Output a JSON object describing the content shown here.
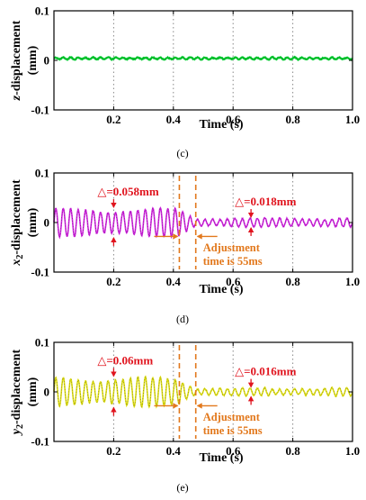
{
  "chart_data": [
    {
      "type": "line",
      "caption": "(c)",
      "ylabel_italic": "z",
      "ylabel_rest": "-displacement",
      "ylabel_unit": "(mm)",
      "xlabel": "Time (s)",
      "xlim": [
        0,
        1.0
      ],
      "ylim": [
        -0.1,
        0.1
      ],
      "x_ticks": [
        "0.2",
        "0.4",
        "0.6",
        "0.8",
        "1.0"
      ],
      "y_ticks": [
        "0.1",
        "0",
        "-0.1"
      ],
      "grid": "vertical dotted",
      "series": [
        {
          "color": "#00d030",
          "signal": {
            "offset": 0.004,
            "amplitude_before": 0.002,
            "amplitude_after": 0.002,
            "frequency_hz": 40,
            "switch_time": 0.42,
            "noise": 0.002
          }
        }
      ],
      "annotations": []
    },
    {
      "type": "line",
      "caption": "(d)",
      "ylabel_italic": "x",
      "ylabel_sub": "2",
      "ylabel_rest": "-displacement",
      "ylabel_unit": "(mm)",
      "xlabel": "Time (s)",
      "xlim": [
        0,
        1.0
      ],
      "ylim": [
        -0.1,
        0.1
      ],
      "x_ticks": [
        "0.2",
        "0.4",
        "0.6",
        "0.8",
        "1.0"
      ],
      "y_ticks": [
        "0.1",
        "0",
        "-0.1"
      ],
      "grid": "vertical dotted",
      "series": [
        {
          "color": "#d020e0",
          "signal": {
            "offset": 0.0,
            "amplitude_before": 0.029,
            "amplitude_after": 0.009,
            "frequency_hz": 40,
            "switch_time": 0.42,
            "noise": 0.003
          }
        }
      ],
      "annotations": [
        {
          "text": "△=0.058mm",
          "color": "#e0141e",
          "x": 0.2,
          "y_top": 0.029,
          "y_bottom": -0.029
        },
        {
          "text": "△=0.018mm",
          "color": "#e0141e",
          "x": 0.66,
          "y_top": 0.009,
          "y_bottom": -0.009
        }
      ],
      "adjustment": {
        "x_start": 0.42,
        "x_end": 0.475,
        "line1": "Adjustment",
        "line2": "time is 55ms",
        "color": "#e2781c"
      }
    },
    {
      "type": "line",
      "caption": "(e)",
      "ylabel_italic": "y",
      "ylabel_sub": "2",
      "ylabel_rest": "-displacement",
      "ylabel_unit": "(mm)",
      "xlabel": "Time (s)",
      "xlim": [
        0,
        1.0
      ],
      "ylim": [
        -0.1,
        0.1
      ],
      "x_ticks": [
        "0.2",
        "0.4",
        "0.6",
        "0.8",
        "1.0"
      ],
      "y_ticks": [
        "0.1",
        "0",
        "-0.1"
      ],
      "grid": "vertical dotted",
      "series": [
        {
          "color": "#dede10",
          "signal": {
            "offset": 0.0,
            "amplitude_before": 0.03,
            "amplitude_after": 0.008,
            "frequency_hz": 40,
            "switch_time": 0.42,
            "noise": 0.003
          }
        }
      ],
      "annotations": [
        {
          "text": "△=0.06mm",
          "color": "#e0141e",
          "x": 0.2,
          "y_top": 0.03,
          "y_bottom": -0.03
        },
        {
          "text": "△=0.016mm",
          "color": "#e0141e",
          "x": 0.66,
          "y_top": 0.008,
          "y_bottom": -0.008
        }
      ],
      "adjustment": {
        "x_start": 0.42,
        "x_end": 0.475,
        "line1": "Adjustment",
        "line2": "time is 55ms",
        "color": "#e2781c"
      }
    }
  ]
}
